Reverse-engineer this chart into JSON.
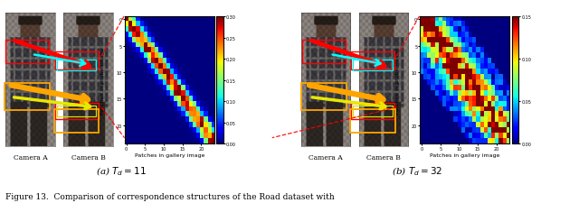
{
  "caption_text": "Figure 13.  Comparison of correspondence structures of the Road dataset with",
  "sub_a_label": "(a) $T_d = 11$",
  "sub_b_label": "(b) $T_d = 32$",
  "cam_a_label": "Camera A",
  "cam_b_label": "Camera B",
  "xlabel": "Patches in gallery image",
  "ylabel": "Patches in probe image",
  "colorbar_ticks_a": [
    0,
    0.05,
    0.1,
    0.15,
    0.2,
    0.25,
    0.3
  ],
  "colorbar_ticks_b": [
    0,
    0.05,
    0.1,
    0.15
  ],
  "background_color": "#ffffff",
  "fig_width": 6.4,
  "fig_height": 2.26
}
